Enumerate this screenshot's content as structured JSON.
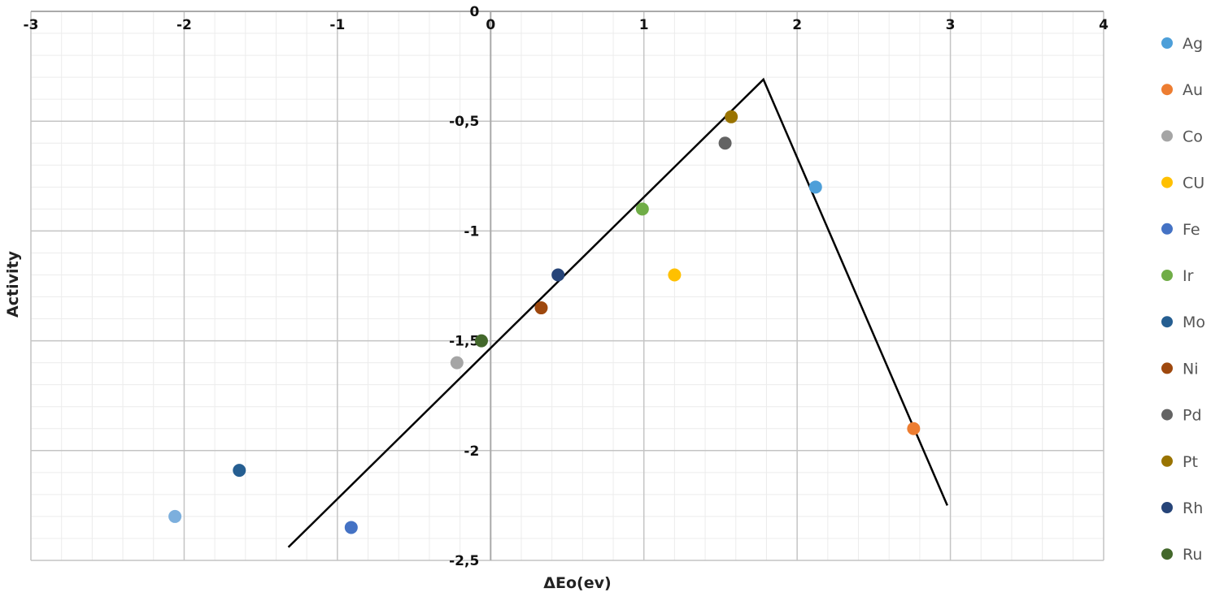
{
  "chart_data": {
    "type": "scatter",
    "xlabel": "ΔEo(ev)",
    "ylabel": "Activity",
    "xlim": [
      -3,
      4
    ],
    "ylim": [
      -2.5,
      0
    ],
    "x_ticks": [
      "-3",
      "-2",
      "-1",
      "0",
      "1",
      "2",
      "3",
      "4"
    ],
    "x_tick_values": [
      -3,
      -2,
      -1,
      0,
      1,
      2,
      3,
      4
    ],
    "y_ticks": [
      "0",
      "-0,5",
      "-1",
      "-1,5",
      "-2",
      "-2,5"
    ],
    "y_tick_values": [
      0,
      -0.5,
      -1,
      -1.5,
      -2,
      -2.5
    ],
    "grid": true,
    "legend_position": "right",
    "series": [
      {
        "name": "Ag",
        "color": "#4d9fd9",
        "x": 2.12,
        "y": -0.8
      },
      {
        "name": "Au",
        "color": "#ed7d31",
        "x": 2.76,
        "y": -1.9
      },
      {
        "name": "Co",
        "color": "#a5a5a5",
        "x": -0.22,
        "y": -1.6
      },
      {
        "name": "CU",
        "color": "#ffc000",
        "x": 1.2,
        "y": -1.2
      },
      {
        "name": "Fe",
        "color": "#4472c4",
        "x": -0.91,
        "y": -2.35
      },
      {
        "name": "Ir",
        "color": "#70ad47",
        "x": 0.99,
        "y": -0.9
      },
      {
        "name": "Mo",
        "color": "#255e91",
        "x": -1.64,
        "y": -2.09
      },
      {
        "name": "Ni",
        "color": "#9e480e",
        "x": 0.33,
        "y": -1.35
      },
      {
        "name": "Pd",
        "color": "#636363",
        "x": 1.53,
        "y": -0.6
      },
      {
        "name": "Pt",
        "color": "#997300",
        "x": 1.57,
        "y": -0.48
      },
      {
        "name": "Rh",
        "color": "#264478",
        "x": 0.44,
        "y": -1.2
      },
      {
        "name": "Ru",
        "color": "#43682b",
        "x": -0.06,
        "y": -1.5
      }
    ],
    "unlabeled_points": [
      {
        "color": "#7cafdd",
        "x": -2.06,
        "y": -2.3
      }
    ],
    "line": {
      "color": "#000000",
      "x": [
        -1.32,
        1.78,
        2.98
      ],
      "y": [
        -2.44,
        -0.31,
        -2.25
      ]
    }
  }
}
